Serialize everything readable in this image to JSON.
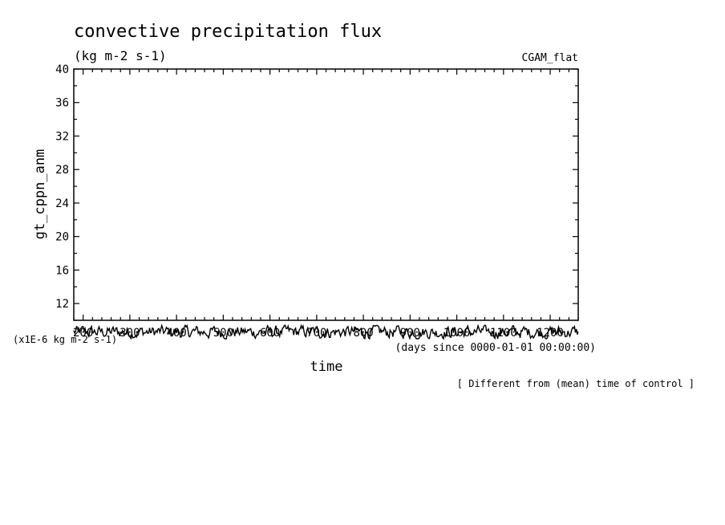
{
  "chart_data": {
    "type": "line",
    "title": "convective precipitation flux",
    "units": "(kg m-2 s-1)",
    "run_label": "CGAM_flat",
    "ylabel": "gt_cppn_anm",
    "xlabel": "time",
    "x_units": "(days since 0000-01-01 00:00:00)",
    "y_scale_note": "(x1E-6 kg m-2 s-1)",
    "overlay_note": "[ Different from (mean) time of control ]",
    "xlim": [
      180,
      1260
    ],
    "ylim": [
      10,
      40
    ],
    "x_ticks": [
      "200",
      "300",
      "400",
      "500",
      "600",
      "700",
      "800",
      "900",
      "1000",
      "1100",
      "1200"
    ],
    "y_ticks": [
      "12",
      "16",
      "20",
      "24",
      "28",
      "32",
      "36",
      "40"
    ],
    "series": [
      {
        "color": "#000000",
        "y_min": 7.8,
        "y_max": 9.4,
        "x_start": 180,
        "x_end": 1260,
        "points": 540
      }
    ]
  }
}
